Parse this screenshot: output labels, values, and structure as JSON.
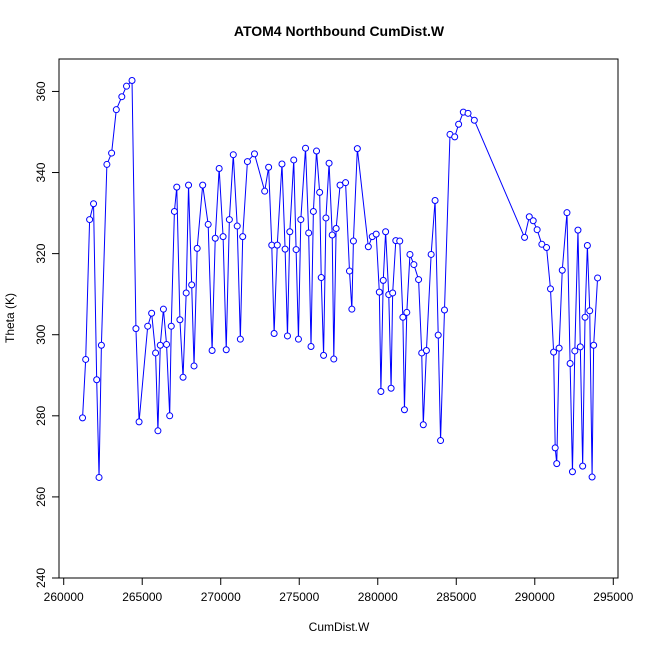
{
  "chart_data": {
    "type": "line",
    "title": "ATOM4 Northbound CumDist.W",
    "xlabel": "CumDist.W",
    "ylabel": "Theta (K)",
    "xlim": [
      259700,
      295300
    ],
    "ylim": [
      240,
      368
    ],
    "xticks": [
      260000,
      265000,
      270000,
      275000,
      280000,
      285000,
      290000,
      295000
    ],
    "yticks": [
      240,
      260,
      280,
      300,
      320,
      340,
      360
    ],
    "grid": false,
    "legend": "none",
    "color": "#0000ff",
    "markers": "open-circle",
    "points": [
      [
        261200,
        279.5
      ],
      [
        261400,
        293.9
      ],
      [
        261650,
        328.4
      ],
      [
        261900,
        332.3
      ],
      [
        262100,
        288.9
      ],
      [
        262250,
        264.8
      ],
      [
        262400,
        297.4
      ],
      [
        262750,
        342.0
      ],
      [
        263050,
        344.8
      ],
      [
        263350,
        355.5
      ],
      [
        263700,
        358.7
      ],
      [
        264000,
        361.3
      ],
      [
        264350,
        362.7
      ],
      [
        264600,
        301.5
      ],
      [
        264800,
        278.5
      ],
      [
        265350,
        302.1
      ],
      [
        265600,
        305.3
      ],
      [
        265850,
        295.5
      ],
      [
        266000,
        276.3
      ],
      [
        266150,
        297.4
      ],
      [
        266350,
        306.3
      ],
      [
        266550,
        297.6
      ],
      [
        266750,
        280.0
      ],
      [
        266850,
        302.1
      ],
      [
        267050,
        330.4
      ],
      [
        267200,
        336.4
      ],
      [
        267400,
        303.7
      ],
      [
        267600,
        289.5
      ],
      [
        267800,
        310.3
      ],
      [
        267950,
        336.9
      ],
      [
        268150,
        312.3
      ],
      [
        268300,
        292.3
      ],
      [
        268500,
        321.3
      ],
      [
        268850,
        336.9
      ],
      [
        269200,
        327.2
      ],
      [
        269450,
        296.1
      ],
      [
        269650,
        323.8
      ],
      [
        269900,
        341.0
      ],
      [
        270150,
        324.2
      ],
      [
        270350,
        296.3
      ],
      [
        270550,
        328.4
      ],
      [
        270800,
        344.4
      ],
      [
        271050,
        326.8
      ],
      [
        271250,
        298.9
      ],
      [
        271400,
        324.2
      ],
      [
        271700,
        342.7
      ],
      [
        272150,
        344.6
      ],
      [
        272800,
        335.4
      ],
      [
        273050,
        341.3
      ],
      [
        273250,
        322.1
      ],
      [
        273400,
        300.3
      ],
      [
        273600,
        322.1
      ],
      [
        273900,
        342.1
      ],
      [
        274100,
        321.1
      ],
      [
        274250,
        299.7
      ],
      [
        274400,
        325.4
      ],
      [
        274650,
        343.1
      ],
      [
        274800,
        321.0
      ],
      [
        274950,
        298.9
      ],
      [
        275100,
        328.4
      ],
      [
        275400,
        346.0
      ],
      [
        275600,
        325.1
      ],
      [
        275750,
        297.1
      ],
      [
        275900,
        330.4
      ],
      [
        276100,
        345.3
      ],
      [
        276300,
        335.1
      ],
      [
        276400,
        314.1
      ],
      [
        276550,
        294.9
      ],
      [
        276700,
        328.8
      ],
      [
        276900,
        342.3
      ],
      [
        277100,
        324.6
      ],
      [
        277200,
        294.0
      ],
      [
        277350,
        326.2
      ],
      [
        277600,
        336.9
      ],
      [
        277950,
        337.5
      ],
      [
        278200,
        315.7
      ],
      [
        278350,
        306.3
      ],
      [
        278450,
        323.1
      ],
      [
        278700,
        345.9
      ],
      [
        279400,
        321.7
      ],
      [
        279650,
        324.2
      ],
      [
        279900,
        324.8
      ],
      [
        280100,
        310.5
      ],
      [
        280200,
        286.0
      ],
      [
        280350,
        313.4
      ],
      [
        280500,
        325.4
      ],
      [
        280700,
        309.9
      ],
      [
        280850,
        286.8
      ],
      [
        280950,
        310.3
      ],
      [
        281150,
        323.2
      ],
      [
        281400,
        323.1
      ],
      [
        281600,
        304.3
      ],
      [
        281700,
        281.5
      ],
      [
        281850,
        305.5
      ],
      [
        282050,
        319.8
      ],
      [
        282300,
        317.3
      ],
      [
        282600,
        313.6
      ],
      [
        282800,
        295.5
      ],
      [
        282900,
        277.8
      ],
      [
        283100,
        296.1
      ],
      [
        283400,
        319.8
      ],
      [
        283650,
        333.1
      ],
      [
        283850,
        299.9
      ],
      [
        284000,
        273.9
      ],
      [
        284250,
        306.1
      ],
      [
        284600,
        349.4
      ],
      [
        284900,
        348.8
      ],
      [
        285150,
        351.9
      ],
      [
        285450,
        354.9
      ],
      [
        285750,
        354.6
      ],
      [
        286150,
        352.9
      ],
      [
        289350,
        324.0
      ],
      [
        289650,
        329.1
      ],
      [
        289900,
        328.1
      ],
      [
        290150,
        325.9
      ],
      [
        290450,
        322.3
      ],
      [
        290750,
        321.5
      ],
      [
        291000,
        311.3
      ],
      [
        291200,
        295.7
      ],
      [
        291300,
        272.1
      ],
      [
        291400,
        268.2
      ],
      [
        291550,
        296.7
      ],
      [
        291750,
        315.9
      ],
      [
        292050,
        330.1
      ],
      [
        292250,
        292.9
      ],
      [
        292400,
        266.2
      ],
      [
        292550,
        296.0
      ],
      [
        292750,
        325.8
      ],
      [
        292900,
        297.0
      ],
      [
        293050,
        267.6
      ],
      [
        293200,
        304.3
      ],
      [
        293350,
        322.0
      ],
      [
        293500,
        305.9
      ],
      [
        293650,
        264.9
      ],
      [
        293750,
        297.4
      ],
      [
        294000,
        314.0
      ]
    ]
  }
}
